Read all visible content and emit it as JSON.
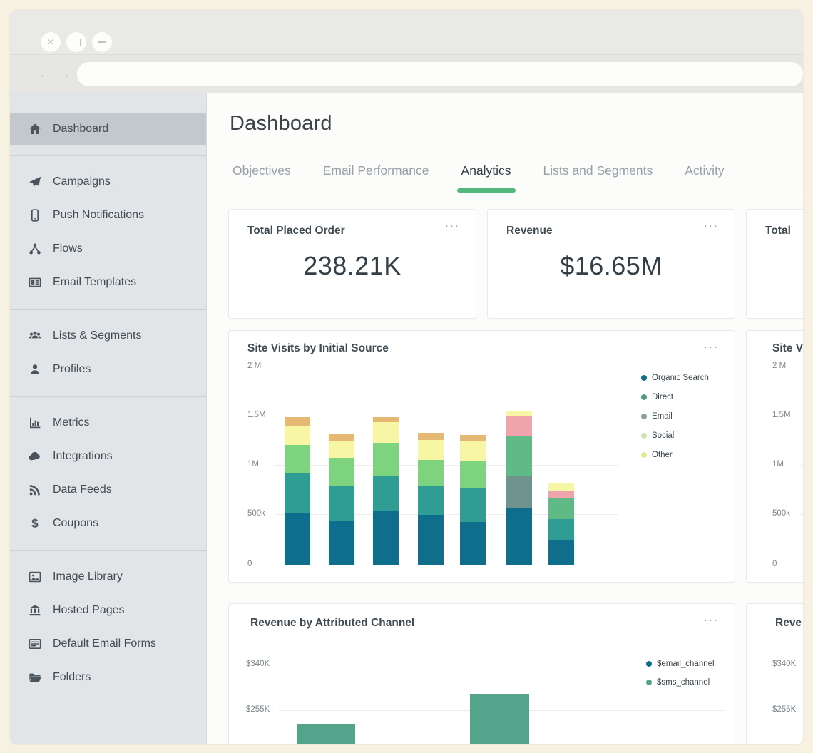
{
  "window_chrome": {
    "controls": [
      {
        "name": "close",
        "glyph": "x"
      },
      {
        "name": "maximize",
        "glyph": "square"
      },
      {
        "name": "minimize",
        "glyph": "minus"
      }
    ],
    "nav": {
      "back": "←",
      "forward": "→"
    },
    "address_bar": {
      "value": "",
      "placeholder": ""
    }
  },
  "sidebar": {
    "sections": [
      {
        "items": [
          {
            "label": "Dashboard",
            "icon": "home-icon",
            "active": true
          }
        ]
      },
      {
        "items": [
          {
            "label": "Campaigns",
            "icon": "paper-plane-icon"
          },
          {
            "label": "Push Notifications",
            "icon": "mobile-icon"
          },
          {
            "label": "Flows",
            "icon": "flows-icon"
          },
          {
            "label": "Email Templates",
            "icon": "template-icon"
          }
        ]
      },
      {
        "items": [
          {
            "label": "Lists & Segments",
            "icon": "users-icon"
          },
          {
            "label": "Profiles",
            "icon": "user-icon"
          }
        ]
      },
      {
        "items": [
          {
            "label": "Metrics",
            "icon": "metrics-icon"
          },
          {
            "label": "Integrations",
            "icon": "cloud-icon"
          },
          {
            "label": "Data Feeds",
            "icon": "rss-icon"
          },
          {
            "label": "Coupons",
            "icon": "dollar-icon"
          }
        ]
      },
      {
        "items": [
          {
            "label": "Image Library",
            "icon": "image-icon"
          },
          {
            "label": "Hosted Pages",
            "icon": "bank-icon"
          },
          {
            "label": "Default Email Forms",
            "icon": "form-icon"
          },
          {
            "label": "Folders",
            "icon": "folder-icon"
          }
        ]
      }
    ]
  },
  "header": {
    "title": "Dashboard"
  },
  "tabs": [
    {
      "label": "Objectives",
      "active": false
    },
    {
      "label": "Email Performance",
      "active": false
    },
    {
      "label": "Analytics",
      "active": true
    },
    {
      "label": "Lists and Segments",
      "active": false
    },
    {
      "label": "Activity",
      "active": false
    }
  ],
  "card_menu_glyph": "···",
  "metric_cards": [
    {
      "title": "Total Placed Order",
      "value": "238.21K",
      "has_menu": true
    },
    {
      "title": "Revenue",
      "value": "$16.65M",
      "has_menu": true
    },
    {
      "title": "Total",
      "value": "",
      "has_menu": false
    }
  ],
  "partial_cards": {
    "site_visits": {
      "title": "Site Vi",
      "y_ticks": [
        "2 M",
        "1.5M",
        "1M",
        "500k",
        "0"
      ]
    },
    "revenue": {
      "title": "Reve",
      "y_ticks": [
        "$340K",
        "$255K"
      ]
    }
  },
  "colors": {
    "accent_green": "#54b87e",
    "sidebar_active_bg": "#c2c8cc",
    "organic_teal": "#0e6e8c",
    "direct_teal": "#2f9d94",
    "light_green": "#7ed37f",
    "pale_yellow": "#f6f6a4",
    "orange_tan": "#e5b873",
    "gray_teal": "#6f948d",
    "sea_green": "#5fba85",
    "pink": "#efa3ad",
    "sms_green": "#53a48a"
  },
  "chart_data": [
    {
      "type": "bar",
      "stacked": true,
      "title": "Site Visits by Initial Source",
      "ylim": [
        0,
        2000000
      ],
      "y_ticks": [
        "2 M",
        "1.5M",
        "1M",
        "500k",
        "0"
      ],
      "grid": true,
      "legend_position": "right",
      "legend": [
        {
          "label": "Organic Search",
          "color": "#0e6e8c"
        },
        {
          "label": "Direct",
          "color": "#4e9e88"
        },
        {
          "label": "Email",
          "color": "#8aa09e"
        },
        {
          "label": "Social",
          "color": "#cde6af"
        },
        {
          "label": "Other",
          "color": "#e3e88e"
        }
      ],
      "bars": [
        {
          "segments": [
            {
              "value": 520000,
              "color": "#0e6e8c"
            },
            {
              "value": 400000,
              "color": "#2f9d94"
            },
            {
              "value": 290000,
              "color": "#7ed37f"
            },
            {
              "value": 190000,
              "color": "#f6f6a4"
            },
            {
              "value": 90000,
              "color": "#e5b873"
            }
          ]
        },
        {
          "segments": [
            {
              "value": 440000,
              "color": "#0e6e8c"
            },
            {
              "value": 350000,
              "color": "#2f9d94"
            },
            {
              "value": 290000,
              "color": "#7ed37f"
            },
            {
              "value": 170000,
              "color": "#f6f6a4"
            },
            {
              "value": 70000,
              "color": "#e5b873"
            }
          ]
        },
        {
          "segments": [
            {
              "value": 550000,
              "color": "#0e6e8c"
            },
            {
              "value": 340000,
              "color": "#2f9d94"
            },
            {
              "value": 340000,
              "color": "#7ed37f"
            },
            {
              "value": 210000,
              "color": "#f6f6a4"
            },
            {
              "value": 50000,
              "color": "#e5b873"
            }
          ]
        },
        {
          "segments": [
            {
              "value": 500000,
              "color": "#0e6e8c"
            },
            {
              "value": 300000,
              "color": "#2f9d94"
            },
            {
              "value": 260000,
              "color": "#7ed37f"
            },
            {
              "value": 200000,
              "color": "#f6f6a4"
            },
            {
              "value": 70000,
              "color": "#e5b873"
            }
          ]
        },
        {
          "segments": [
            {
              "value": 430000,
              "color": "#0e6e8c"
            },
            {
              "value": 350000,
              "color": "#2f9d94"
            },
            {
              "value": 260000,
              "color": "#7ed37f"
            },
            {
              "value": 210000,
              "color": "#f6f6a4"
            },
            {
              "value": 60000,
              "color": "#e5b873"
            }
          ]
        },
        {
          "segments": [
            {
              "value": 570000,
              "color": "#0e6e8c"
            },
            {
              "value": 330000,
              "color": "#6f948d"
            },
            {
              "value": 400000,
              "color": "#5fba85"
            },
            {
              "value": 200000,
              "color": "#efa3ad"
            },
            {
              "value": 50000,
              "color": "#f6f6a4"
            }
          ]
        },
        {
          "segments": [
            {
              "value": 250000,
              "color": "#0e6e8c"
            },
            {
              "value": 210000,
              "color": "#2f9d94"
            },
            {
              "value": 210000,
              "color": "#5fba85"
            },
            {
              "value": 80000,
              "color": "#efa3ad"
            },
            {
              "value": 70000,
              "color": "#f6f6a4"
            }
          ]
        }
      ]
    },
    {
      "type": "bar",
      "stacked": true,
      "title": "Revenue by Attributed Channel",
      "y_ticks": [
        "$340K",
        "$255K"
      ],
      "grid": true,
      "legend_position": "right",
      "note": "chart bottom cut off by window edge",
      "legend": [
        {
          "label": "$email_channel",
          "color": "#0e6e8c"
        },
        {
          "label": "$sms_channel",
          "color": "#53a48a"
        }
      ],
      "bars": [
        {
          "sms": 230000,
          "email": 0
        },
        {
          "sms": 278000,
          "email": 8000
        }
      ]
    }
  ]
}
